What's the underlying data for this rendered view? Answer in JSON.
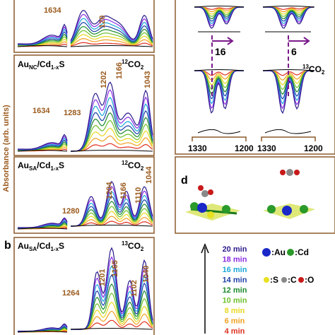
{
  "y_axis_label": "Absorbance (arb. units)",
  "panel_letters": [
    "b",
    "d"
  ],
  "top_panel": {
    "peaks": [
      "1634",
      "120"
    ]
  },
  "panels": [
    {
      "sample": [
        "Au",
        "NC",
        "/Cd",
        "1-x",
        "S"
      ],
      "gas": [
        "12",
        "CO",
        "2"
      ],
      "peaks": [
        "1283",
        "1634",
        "1202",
        "1166",
        "1043"
      ]
    },
    {
      "sample": [
        "Au",
        "SA",
        "/Cd",
        "1-x",
        "S"
      ],
      "gas": [
        "12",
        "CO",
        "2"
      ],
      "peaks": [
        "1280",
        "1204",
        "1166",
        "1110",
        "1044"
      ]
    },
    {
      "sample": [
        "Au",
        "SA",
        "/Cd",
        "1-x",
        "S"
      ],
      "gas": [
        "13",
        "CO",
        "2"
      ],
      "peaks": [
        "1264",
        "1201",
        "1165",
        "1102",
        "1040"
      ]
    }
  ],
  "panel_c": {
    "shifts": [
      "16",
      "6"
    ],
    "gas": [
      "13",
      "CO",
      "2"
    ],
    "axis": [
      "1330",
      "1200",
      "1330",
      "1200"
    ]
  },
  "legend": {
    "times": [
      {
        "label": "20 min",
        "color": "#2a1a8c"
      },
      {
        "label": "18 min",
        "color": "#8a2be2"
      },
      {
        "label": "16 min",
        "color": "#1aa7d8"
      },
      {
        "label": "14 min",
        "color": "#1a3fa8"
      },
      {
        "label": "12 min",
        "color": "#1a8a2a"
      },
      {
        "label": "10 min",
        "color": "#6cc02a"
      },
      {
        "label": "8 min",
        "color": "#e8d820"
      },
      {
        "label": "6 min",
        "color": "#f0a020"
      },
      {
        "label": "4 min",
        "color": "#e03020"
      }
    ],
    "atoms": [
      ":Au",
      ":Cd",
      ":S",
      ":C",
      ":O"
    ]
  }
}
